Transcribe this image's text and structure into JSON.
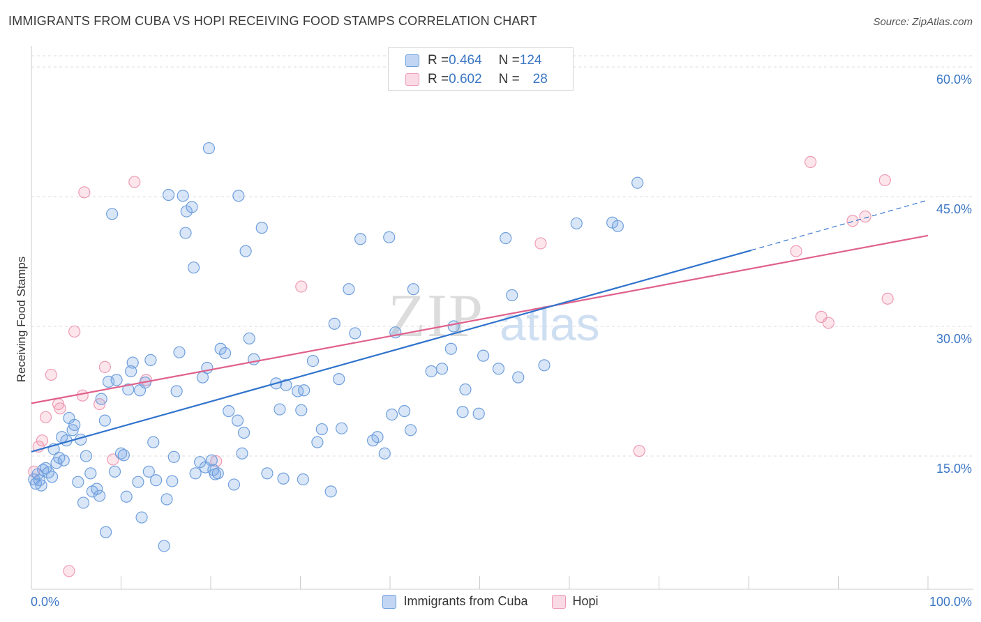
{
  "header": {
    "title": "IMMIGRANTS FROM CUBA VS HOPI RECEIVING FOOD STAMPS CORRELATION CHART",
    "source": "Source: ZipAtlas.com"
  },
  "watermark": {
    "zip": "ZIP",
    "atlas": "atlas"
  },
  "legend_top": [
    {
      "r_label": "R = ",
      "r_value": "0.464",
      "n_label": "N = ",
      "n_value": "124"
    },
    {
      "r_label": "R = ",
      "r_value": "0.602",
      "n_label": "N = ",
      "n_value": "28"
    }
  ],
  "colors": {
    "cuba_fill": "rgba(120,165,230,0.28)",
    "cuba_stroke": "#6f9fdc",
    "cuba_line": "#2f73cc",
    "hopi_fill": "rgba(240,140,170,0.22)",
    "hopi_stroke": "#ee9ab3",
    "hopi_line": "#e0608c",
    "axis_label": "#3a76c4",
    "grid": "#dcdcdc"
  },
  "chart_data": {
    "type": "scatter",
    "title": "IMMIGRANTS FROM CUBA VS HOPI RECEIVING FOOD STAMPS CORRELATION CHART",
    "xlabel": "",
    "ylabel": "Receiving Food Stamps",
    "xlim": [
      0,
      100
    ],
    "ylim": [
      0,
      63
    ],
    "x_tick_labels": [
      "0.0%",
      "100.0%"
    ],
    "y_ticks": [
      15,
      30,
      45,
      60
    ],
    "y_tick_labels": [
      "15.0%",
      "30.0%",
      "45.0%",
      "60.0%"
    ],
    "grid": true,
    "legend_position": "top-center",
    "series": [
      {
        "name": "Immigrants from Cuba",
        "r": 0.464,
        "n": 124,
        "trend": {
          "x0": 0,
          "y0": 15.5,
          "x1": 80.3,
          "y1": 38.8,
          "x_dash_end": 100,
          "y_dash_end": 44.6
        },
        "points": [
          [
            0.3,
            12.3
          ],
          [
            0.5,
            11.8
          ],
          [
            0.7,
            12.9
          ],
          [
            0.9,
            12.2
          ],
          [
            1.1,
            11.6
          ],
          [
            1.3,
            13.4
          ],
          [
            1.6,
            13.6
          ],
          [
            1.9,
            13.1
          ],
          [
            2.3,
            12.6
          ],
          [
            2.5,
            15.8
          ],
          [
            2.8,
            14.2
          ],
          [
            3.1,
            14.8
          ],
          [
            3.4,
            17.2
          ],
          [
            3.6,
            14.5
          ],
          [
            3.9,
            16.8
          ],
          [
            4.2,
            19.4
          ],
          [
            4.6,
            18.0
          ],
          [
            4.8,
            18.6
          ],
          [
            5.2,
            12.0
          ],
          [
            5.5,
            16.9
          ],
          [
            5.8,
            9.6
          ],
          [
            6.1,
            15.0
          ],
          [
            6.6,
            13.0
          ],
          [
            6.8,
            10.9
          ],
          [
            7.3,
            11.2
          ],
          [
            7.6,
            10.4
          ],
          [
            7.8,
            21.6
          ],
          [
            8.2,
            19.1
          ],
          [
            8.3,
            6.2
          ],
          [
            8.6,
            23.6
          ],
          [
            9.0,
            43.0
          ],
          [
            9.3,
            13.2
          ],
          [
            9.5,
            23.8
          ],
          [
            10.0,
            15.3
          ],
          [
            10.3,
            15.1
          ],
          [
            10.6,
            10.3
          ],
          [
            10.8,
            22.7
          ],
          [
            11.1,
            24.8
          ],
          [
            11.3,
            25.8
          ],
          [
            11.9,
            12.0
          ],
          [
            12.1,
            22.6
          ],
          [
            12.3,
            7.9
          ],
          [
            12.7,
            23.5
          ],
          [
            13.1,
            13.2
          ],
          [
            13.3,
            26.1
          ],
          [
            13.6,
            16.6
          ],
          [
            13.9,
            12.2
          ],
          [
            14.8,
            4.6
          ],
          [
            15.1,
            10.0
          ],
          [
            15.3,
            45.2
          ],
          [
            15.7,
            12.1
          ],
          [
            15.9,
            14.9
          ],
          [
            16.2,
            22.5
          ],
          [
            16.5,
            27.0
          ],
          [
            16.9,
            45.1
          ],
          [
            17.2,
            40.8
          ],
          [
            17.3,
            43.3
          ],
          [
            17.9,
            43.8
          ],
          [
            18.1,
            36.8
          ],
          [
            18.3,
            13.0
          ],
          [
            18.8,
            14.3
          ],
          [
            19.1,
            24.1
          ],
          [
            19.4,
            13.7
          ],
          [
            19.6,
            25.2
          ],
          [
            19.8,
            50.6
          ],
          [
            20.1,
            14.5
          ],
          [
            20.3,
            13.4
          ],
          [
            20.5,
            12.9
          ],
          [
            20.8,
            13.0
          ],
          [
            21.1,
            27.4
          ],
          [
            21.6,
            26.9
          ],
          [
            22.0,
            20.2
          ],
          [
            22.6,
            11.7
          ],
          [
            23.0,
            19.1
          ],
          [
            23.1,
            45.1
          ],
          [
            23.5,
            15.3
          ],
          [
            23.7,
            17.7
          ],
          [
            23.9,
            38.7
          ],
          [
            24.3,
            28.6
          ],
          [
            24.8,
            26.2
          ],
          [
            25.7,
            41.4
          ],
          [
            26.3,
            13.0
          ],
          [
            27.3,
            23.4
          ],
          [
            27.7,
            20.4
          ],
          [
            28.1,
            12.4
          ],
          [
            28.4,
            23.2
          ],
          [
            29.7,
            22.5
          ],
          [
            30.1,
            20.3
          ],
          [
            30.4,
            22.6
          ],
          [
            30.3,
            12.3
          ],
          [
            31.4,
            26.0
          ],
          [
            31.9,
            16.6
          ],
          [
            32.4,
            18.1
          ],
          [
            33.4,
            10.9
          ],
          [
            33.8,
            30.3
          ],
          [
            34.3,
            23.9
          ],
          [
            34.6,
            18.2
          ],
          [
            35.4,
            34.3
          ],
          [
            36.1,
            29.2
          ],
          [
            36.7,
            40.1
          ],
          [
            38.1,
            16.8
          ],
          [
            38.6,
            17.2
          ],
          [
            39.4,
            15.3
          ],
          [
            39.9,
            40.3
          ],
          [
            40.2,
            19.8
          ],
          [
            40.6,
            29.3
          ],
          [
            41.6,
            20.2
          ],
          [
            42.3,
            18.0
          ],
          [
            42.6,
            34.3
          ],
          [
            44.6,
            24.8
          ],
          [
            45.8,
            25.1
          ],
          [
            46.8,
            27.4
          ],
          [
            47.1,
            30.0
          ],
          [
            48.1,
            20.1
          ],
          [
            48.4,
            22.7
          ],
          [
            49.9,
            19.9
          ],
          [
            50.4,
            26.6
          ],
          [
            52.1,
            25.1
          ],
          [
            52.9,
            40.2
          ],
          [
            53.6,
            33.6
          ],
          [
            54.3,
            24.1
          ],
          [
            57.2,
            25.5
          ],
          [
            60.8,
            41.9
          ],
          [
            64.8,
            42.0
          ],
          [
            65.4,
            41.6
          ],
          [
            67.6,
            46.6
          ]
        ]
      },
      {
        "name": "Hopi",
        "r": 0.602,
        "n": 28,
        "trend": {
          "x0": 0,
          "y0": 21.1,
          "x1": 100,
          "y1": 40.5
        },
        "points": [
          [
            0.3,
            13.2
          ],
          [
            0.8,
            16.1
          ],
          [
            1.2,
            16.8
          ],
          [
            1.6,
            19.5
          ],
          [
            2.2,
            24.4
          ],
          [
            3.0,
            21.0
          ],
          [
            3.2,
            20.5
          ],
          [
            4.2,
            1.7
          ],
          [
            4.8,
            29.4
          ],
          [
            5.7,
            22.0
          ],
          [
            5.9,
            45.5
          ],
          [
            7.6,
            21.0
          ],
          [
            8.2,
            25.3
          ],
          [
            9.1,
            14.6
          ],
          [
            11.5,
            46.7
          ],
          [
            12.8,
            23.8
          ],
          [
            20.6,
            14.4
          ],
          [
            30.1,
            34.6
          ],
          [
            56.8,
            39.6
          ],
          [
            67.8,
            15.6
          ],
          [
            85.3,
            38.7
          ],
          [
            86.9,
            49.0
          ],
          [
            88.1,
            31.1
          ],
          [
            88.9,
            30.4
          ],
          [
            91.6,
            42.2
          ],
          [
            93.0,
            42.7
          ],
          [
            95.2,
            46.9
          ],
          [
            95.5,
            33.2
          ]
        ]
      }
    ]
  }
}
